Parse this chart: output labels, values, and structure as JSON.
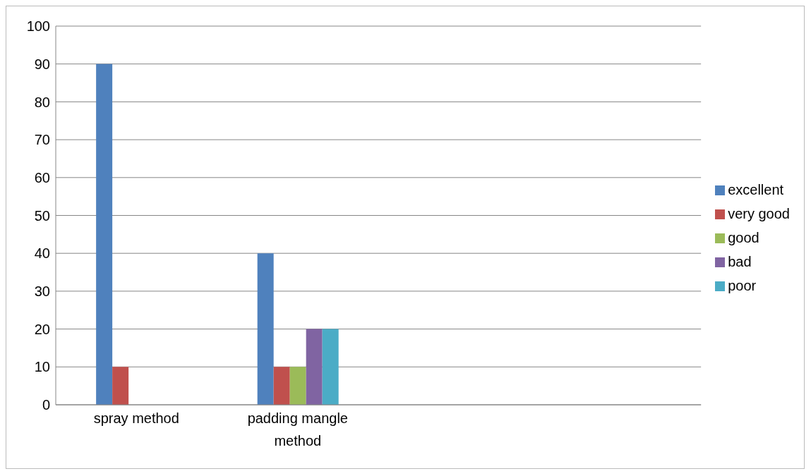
{
  "chart_data": {
    "type": "bar",
    "categories": [
      "spray method",
      "padding mangle method",
      null,
      null
    ],
    "series": [
      {
        "name": "excellent",
        "color": "#4f81bd",
        "values": [
          90,
          40,
          null,
          null
        ]
      },
      {
        "name": "very good",
        "color": "#c0504d",
        "values": [
          10,
          10,
          null,
          null
        ]
      },
      {
        "name": "good",
        "color": "#9bbb59",
        "values": [
          0,
          10,
          null,
          null
        ]
      },
      {
        "name": "bad",
        "color": "#8064a2",
        "values": [
          0,
          20,
          null,
          null
        ]
      },
      {
        "name": "poor",
        "color": "#4bacc6",
        "values": [
          0,
          20,
          null,
          null
        ]
      }
    ],
    "ylim": [
      0,
      100
    ],
    "yticks": [
      0,
      10,
      20,
      30,
      40,
      50,
      60,
      70,
      80,
      90,
      100
    ],
    "grid": "y",
    "legend": "right"
  }
}
